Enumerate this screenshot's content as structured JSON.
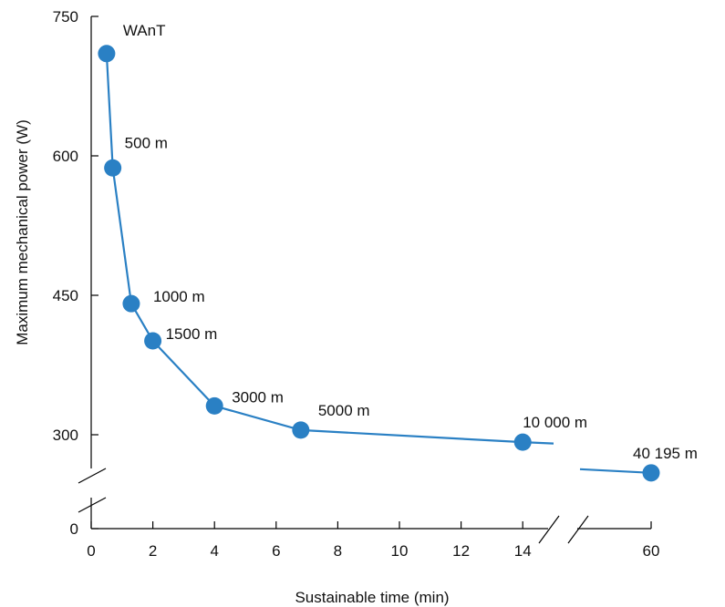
{
  "chart_data": {
    "type": "line",
    "xlabel": "Sustainable time (min)",
    "ylabel": "Maximum mechanical power (W)",
    "x_ticks": [
      "0",
      "2",
      "4",
      "6",
      "8",
      "10",
      "12",
      "14",
      "60"
    ],
    "y_ticks": [
      "0",
      "300",
      "450",
      "600",
      "750"
    ],
    "x_axis_break": "between 14 and 60",
    "y_axis_break": "between 0 and 300",
    "color": "#2a80c4",
    "points": [
      {
        "label": "WAnT",
        "x": 0.5,
        "y": 710
      },
      {
        "label": "500 m",
        "x": 0.7,
        "y": 587
      },
      {
        "label": "1000 m",
        "x": 1.3,
        "y": 441
      },
      {
        "label": "1500 m",
        "x": 2.0,
        "y": 401
      },
      {
        "label": "3000 m",
        "x": 4.0,
        "y": 331
      },
      {
        "label": "5000 m",
        "x": 6.8,
        "y": 305
      },
      {
        "label": "10 000 m",
        "x": 14.0,
        "y": 292
      },
      {
        "label": "40 195 m",
        "x": 60,
        "y": 259
      }
    ]
  }
}
